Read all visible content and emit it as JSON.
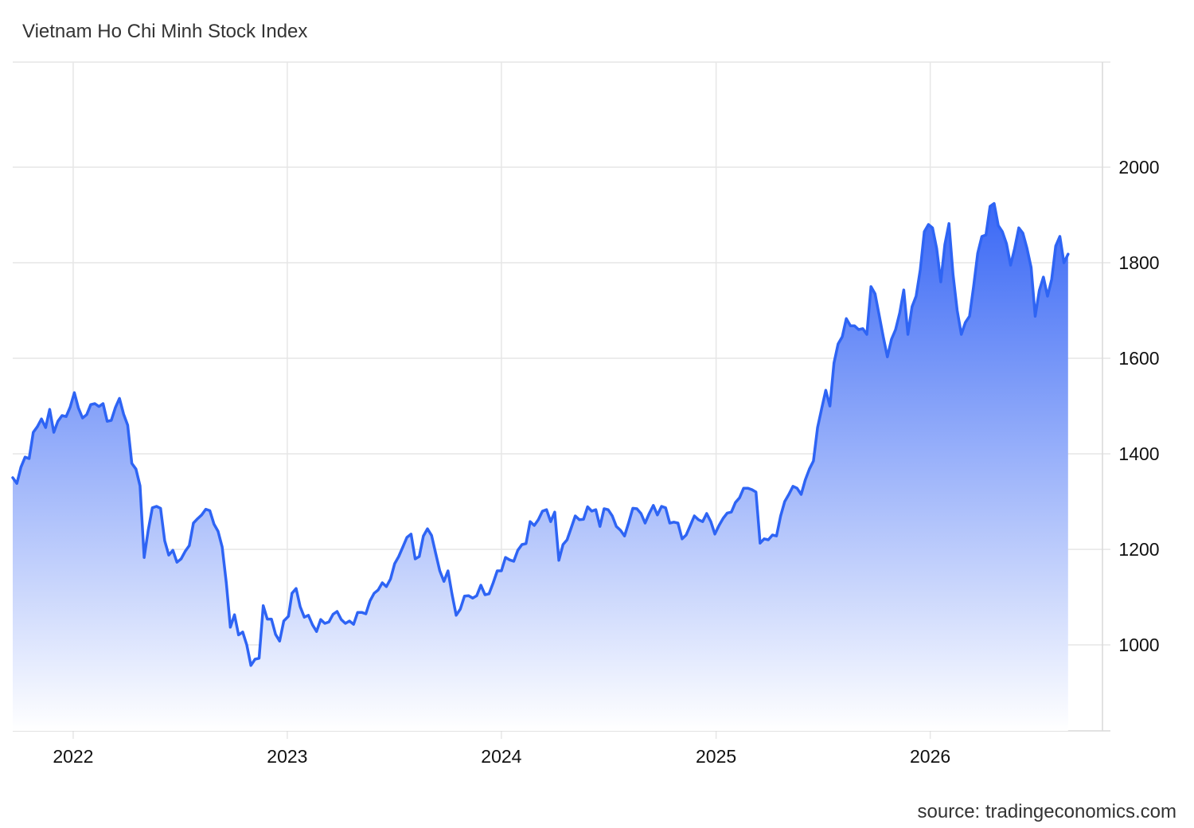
{
  "title": "Vietnam Ho Chi Minh Stock Index",
  "source": "source: tradingeconomics.com",
  "chart_data": {
    "type": "area",
    "title": "Vietnam Ho Chi Minh Stock Index",
    "xlabel": "",
    "ylabel": "",
    "ylim": [
      820,
      2220
    ],
    "xlim": [
      "2021-09-20",
      "2026-09-15"
    ],
    "grid": true,
    "y_ticks": [
      1000,
      1200,
      1400,
      1600,
      1800,
      2000
    ],
    "x_ticks": [
      {
        "label": "2022",
        "date": "2022-01-01"
      },
      {
        "label": "2023",
        "date": "2023-01-01"
      },
      {
        "label": "2024",
        "date": "2024-01-01"
      },
      {
        "label": "2025",
        "date": "2025-01-01"
      },
      {
        "label": "2026",
        "date": "2026-01-01"
      }
    ],
    "colors": {
      "line": "#2e64f4",
      "fill_top": "#3a68f5",
      "fill_bottom": "#ffffff",
      "grid": "#e6e6e6"
    },
    "series": [
      {
        "points": [
          [
            "2021-09-20",
            1350
          ],
          [
            "2021-09-27",
            1338
          ],
          [
            "2021-10-04",
            1372
          ],
          [
            "2021-10-11",
            1393
          ],
          [
            "2021-10-18",
            1390
          ],
          [
            "2021-10-25",
            1445
          ],
          [
            "2021-11-01",
            1457
          ],
          [
            "2021-11-08",
            1473
          ],
          [
            "2021-11-15",
            1455
          ],
          [
            "2021-11-22",
            1493
          ],
          [
            "2021-11-29",
            1445
          ],
          [
            "2021-12-06",
            1468
          ],
          [
            "2021-12-13",
            1480
          ],
          [
            "2021-12-20",
            1478
          ],
          [
            "2021-12-27",
            1498
          ],
          [
            "2022-01-03",
            1528
          ],
          [
            "2022-01-10",
            1496
          ],
          [
            "2022-01-17",
            1475
          ],
          [
            "2022-01-24",
            1482
          ],
          [
            "2022-01-31",
            1503
          ],
          [
            "2022-02-07",
            1505
          ],
          [
            "2022-02-14",
            1499
          ],
          [
            "2022-02-21",
            1505
          ],
          [
            "2022-02-28",
            1468
          ],
          [
            "2022-03-07",
            1470
          ],
          [
            "2022-03-14",
            1497
          ],
          [
            "2022-03-21",
            1516
          ],
          [
            "2022-03-28",
            1483
          ],
          [
            "2022-04-04",
            1460
          ],
          [
            "2022-04-11",
            1380
          ],
          [
            "2022-04-18",
            1368
          ],
          [
            "2022-04-25",
            1333
          ],
          [
            "2022-05-02",
            1183
          ],
          [
            "2022-05-09",
            1240
          ],
          [
            "2022-05-16",
            1287
          ],
          [
            "2022-05-23",
            1290
          ],
          [
            "2022-05-30",
            1286
          ],
          [
            "2022-06-06",
            1218
          ],
          [
            "2022-06-13",
            1188
          ],
          [
            "2022-06-20",
            1198
          ],
          [
            "2022-06-27",
            1173
          ],
          [
            "2022-07-04",
            1180
          ],
          [
            "2022-07-11",
            1196
          ],
          [
            "2022-07-18",
            1208
          ],
          [
            "2022-07-25",
            1255
          ],
          [
            "2022-08-01",
            1264
          ],
          [
            "2022-08-08",
            1272
          ],
          [
            "2022-08-15",
            1284
          ],
          [
            "2022-08-22",
            1281
          ],
          [
            "2022-08-29",
            1253
          ],
          [
            "2022-09-05",
            1238
          ],
          [
            "2022-09-12",
            1205
          ],
          [
            "2022-09-19",
            1130
          ],
          [
            "2022-09-26",
            1037
          ],
          [
            "2022-10-03",
            1063
          ],
          [
            "2022-10-10",
            1021
          ],
          [
            "2022-10-17",
            1027
          ],
          [
            "2022-10-24",
            1000
          ],
          [
            "2022-10-31",
            957
          ],
          [
            "2022-11-07",
            970
          ],
          [
            "2022-11-14",
            972
          ],
          [
            "2022-11-21",
            1082
          ],
          [
            "2022-11-28",
            1054
          ],
          [
            "2022-12-05",
            1054
          ],
          [
            "2022-12-12",
            1022
          ],
          [
            "2022-12-19",
            1008
          ],
          [
            "2022-12-26",
            1050
          ],
          [
            "2023-01-03",
            1060
          ],
          [
            "2023-01-09",
            1108
          ],
          [
            "2023-01-16",
            1118
          ],
          [
            "2023-01-23",
            1080
          ],
          [
            "2023-01-30",
            1058
          ],
          [
            "2023-02-06",
            1062
          ],
          [
            "2023-02-13",
            1042
          ],
          [
            "2023-02-20",
            1028
          ],
          [
            "2023-02-27",
            1053
          ],
          [
            "2023-03-06",
            1045
          ],
          [
            "2023-03-13",
            1048
          ],
          [
            "2023-03-20",
            1064
          ],
          [
            "2023-03-27",
            1070
          ],
          [
            "2023-04-03",
            1053
          ],
          [
            "2023-04-10",
            1045
          ],
          [
            "2023-04-17",
            1050
          ],
          [
            "2023-04-24",
            1043
          ],
          [
            "2023-05-01",
            1068
          ],
          [
            "2023-05-08",
            1068
          ],
          [
            "2023-05-15",
            1065
          ],
          [
            "2023-05-22",
            1092
          ],
          [
            "2023-05-29",
            1108
          ],
          [
            "2023-06-05",
            1115
          ],
          [
            "2023-06-12",
            1130
          ],
          [
            "2023-06-19",
            1122
          ],
          [
            "2023-06-26",
            1138
          ],
          [
            "2023-07-03",
            1170
          ],
          [
            "2023-07-10",
            1185
          ],
          [
            "2023-07-17",
            1205
          ],
          [
            "2023-07-24",
            1225
          ],
          [
            "2023-07-31",
            1232
          ],
          [
            "2023-08-07",
            1180
          ],
          [
            "2023-08-14",
            1185
          ],
          [
            "2023-08-21",
            1228
          ],
          [
            "2023-08-28",
            1243
          ],
          [
            "2023-09-04",
            1229
          ],
          [
            "2023-09-11",
            1192
          ],
          [
            "2023-09-18",
            1155
          ],
          [
            "2023-09-25",
            1133
          ],
          [
            "2023-10-02",
            1155
          ],
          [
            "2023-10-09",
            1105
          ],
          [
            "2023-10-16",
            1062
          ],
          [
            "2023-10-23",
            1075
          ],
          [
            "2023-10-30",
            1102
          ],
          [
            "2023-11-06",
            1103
          ],
          [
            "2023-11-13",
            1098
          ],
          [
            "2023-11-20",
            1103
          ],
          [
            "2023-11-27",
            1125
          ],
          [
            "2023-12-04",
            1105
          ],
          [
            "2023-12-11",
            1107
          ],
          [
            "2023-12-18",
            1130
          ],
          [
            "2023-12-25",
            1155
          ],
          [
            "2024-01-01",
            1155
          ],
          [
            "2024-01-08",
            1183
          ],
          [
            "2024-01-15",
            1178
          ],
          [
            "2024-01-22",
            1175
          ],
          [
            "2024-01-29",
            1198
          ],
          [
            "2024-02-05",
            1210
          ],
          [
            "2024-02-12",
            1212
          ],
          [
            "2024-02-19",
            1258
          ],
          [
            "2024-02-26",
            1250
          ],
          [
            "2024-03-04",
            1262
          ],
          [
            "2024-03-11",
            1280
          ],
          [
            "2024-03-18",
            1283
          ],
          [
            "2024-03-25",
            1258
          ],
          [
            "2024-04-01",
            1278
          ],
          [
            "2024-04-08",
            1177
          ],
          [
            "2024-04-15",
            1210
          ],
          [
            "2024-04-22",
            1220
          ],
          [
            "2024-04-29",
            1245
          ],
          [
            "2024-05-06",
            1270
          ],
          [
            "2024-05-13",
            1262
          ],
          [
            "2024-05-20",
            1263
          ],
          [
            "2024-05-27",
            1289
          ],
          [
            "2024-06-03",
            1280
          ],
          [
            "2024-06-10",
            1283
          ],
          [
            "2024-06-17",
            1248
          ],
          [
            "2024-06-24",
            1285
          ],
          [
            "2024-07-01",
            1283
          ],
          [
            "2024-07-08",
            1270
          ],
          [
            "2024-07-15",
            1248
          ],
          [
            "2024-07-22",
            1240
          ],
          [
            "2024-07-29",
            1228
          ],
          [
            "2024-08-05",
            1256
          ],
          [
            "2024-08-12",
            1286
          ],
          [
            "2024-08-19",
            1285
          ],
          [
            "2024-08-26",
            1275
          ],
          [
            "2024-09-02",
            1255
          ],
          [
            "2024-09-09",
            1275
          ],
          [
            "2024-09-16",
            1292
          ],
          [
            "2024-09-23",
            1272
          ],
          [
            "2024-09-30",
            1290
          ],
          [
            "2024-10-07",
            1287
          ],
          [
            "2024-10-14",
            1255
          ],
          [
            "2024-10-21",
            1257
          ],
          [
            "2024-10-28",
            1255
          ],
          [
            "2024-11-04",
            1222
          ],
          [
            "2024-11-11",
            1230
          ],
          [
            "2024-11-18",
            1250
          ],
          [
            "2024-11-25",
            1270
          ],
          [
            "2024-12-02",
            1262
          ],
          [
            "2024-12-09",
            1258
          ],
          [
            "2024-12-16",
            1275
          ],
          [
            "2024-12-23",
            1258
          ],
          [
            "2024-12-30",
            1232
          ],
          [
            "2025-01-06",
            1250
          ],
          [
            "2025-01-13",
            1265
          ],
          [
            "2025-01-20",
            1276
          ],
          [
            "2025-01-27",
            1278
          ],
          [
            "2025-02-03",
            1298
          ],
          [
            "2025-02-10",
            1308
          ],
          [
            "2025-02-17",
            1328
          ],
          [
            "2025-02-24",
            1328
          ],
          [
            "2025-03-03",
            1325
          ],
          [
            "2025-03-10",
            1320
          ],
          [
            "2025-03-17",
            1213
          ],
          [
            "2025-03-24",
            1222
          ],
          [
            "2025-03-31",
            1220
          ],
          [
            "2025-04-07",
            1230
          ],
          [
            "2025-04-14",
            1228
          ],
          [
            "2025-04-21",
            1270
          ],
          [
            "2025-04-28",
            1300
          ],
          [
            "2025-05-05",
            1315
          ],
          [
            "2025-05-12",
            1332
          ],
          [
            "2025-05-19",
            1328
          ],
          [
            "2025-05-26",
            1315
          ],
          [
            "2025-06-02",
            1345
          ],
          [
            "2025-06-09",
            1368
          ],
          [
            "2025-06-16",
            1385
          ],
          [
            "2025-06-23",
            1455
          ],
          [
            "2025-06-30",
            1495
          ],
          [
            "2025-07-07",
            1533
          ],
          [
            "2025-07-14",
            1500
          ],
          [
            "2025-07-21",
            1590
          ],
          [
            "2025-07-28",
            1630
          ],
          [
            "2025-08-04",
            1645
          ],
          [
            "2025-08-11",
            1683
          ],
          [
            "2025-08-18",
            1668
          ],
          [
            "2025-08-25",
            1668
          ],
          [
            "2025-09-01",
            1660
          ],
          [
            "2025-09-08",
            1662
          ],
          [
            "2025-09-15",
            1650
          ],
          [
            "2025-09-22",
            1750
          ],
          [
            "2025-09-29",
            1735
          ],
          [
            "2025-10-06",
            1690
          ],
          [
            "2025-10-13",
            1645
          ],
          [
            "2025-10-20",
            1603
          ],
          [
            "2025-10-27",
            1640
          ],
          [
            "2025-11-03",
            1660
          ],
          [
            "2025-11-10",
            1695
          ],
          [
            "2025-11-17",
            1743
          ],
          [
            "2025-11-24",
            1650
          ],
          [
            "2025-12-01",
            1708
          ],
          [
            "2025-12-08",
            1730
          ],
          [
            "2025-12-15",
            1785
          ],
          [
            "2025-12-22",
            1865
          ],
          [
            "2025-12-29",
            1880
          ],
          [
            "2026-01-05",
            1873
          ],
          [
            "2026-01-12",
            1830
          ],
          [
            "2026-01-19",
            1760
          ],
          [
            "2026-01-26",
            1838
          ],
          [
            "2026-02-02",
            1882
          ],
          [
            "2026-02-09",
            1775
          ],
          [
            "2026-02-16",
            1700
          ],
          [
            "2026-02-23",
            1650
          ],
          [
            "2026-03-02",
            1675
          ],
          [
            "2026-03-09",
            1688
          ],
          [
            "2026-03-16",
            1750
          ],
          [
            "2026-03-23",
            1820
          ],
          [
            "2026-03-30",
            1855
          ],
          [
            "2026-04-06",
            1858
          ],
          [
            "2026-04-13",
            1918
          ],
          [
            "2026-04-20",
            1924
          ],
          [
            "2026-04-27",
            1878
          ],
          [
            "2026-05-04",
            1865
          ],
          [
            "2026-05-11",
            1840
          ],
          [
            "2026-05-18",
            1795
          ],
          [
            "2026-05-25",
            1830
          ],
          [
            "2026-06-01",
            1873
          ],
          [
            "2026-06-08",
            1862
          ],
          [
            "2026-06-15",
            1830
          ],
          [
            "2026-06-22",
            1790
          ],
          [
            "2026-06-29",
            1688
          ],
          [
            "2026-07-06",
            1742
          ],
          [
            "2026-07-13",
            1770
          ],
          [
            "2026-07-20",
            1730
          ],
          [
            "2026-07-27",
            1765
          ],
          [
            "2026-08-03",
            1835
          ],
          [
            "2026-08-10",
            1855
          ],
          [
            "2026-08-17",
            1800
          ],
          [
            "2026-08-24",
            1818
          ]
        ]
      }
    ]
  }
}
